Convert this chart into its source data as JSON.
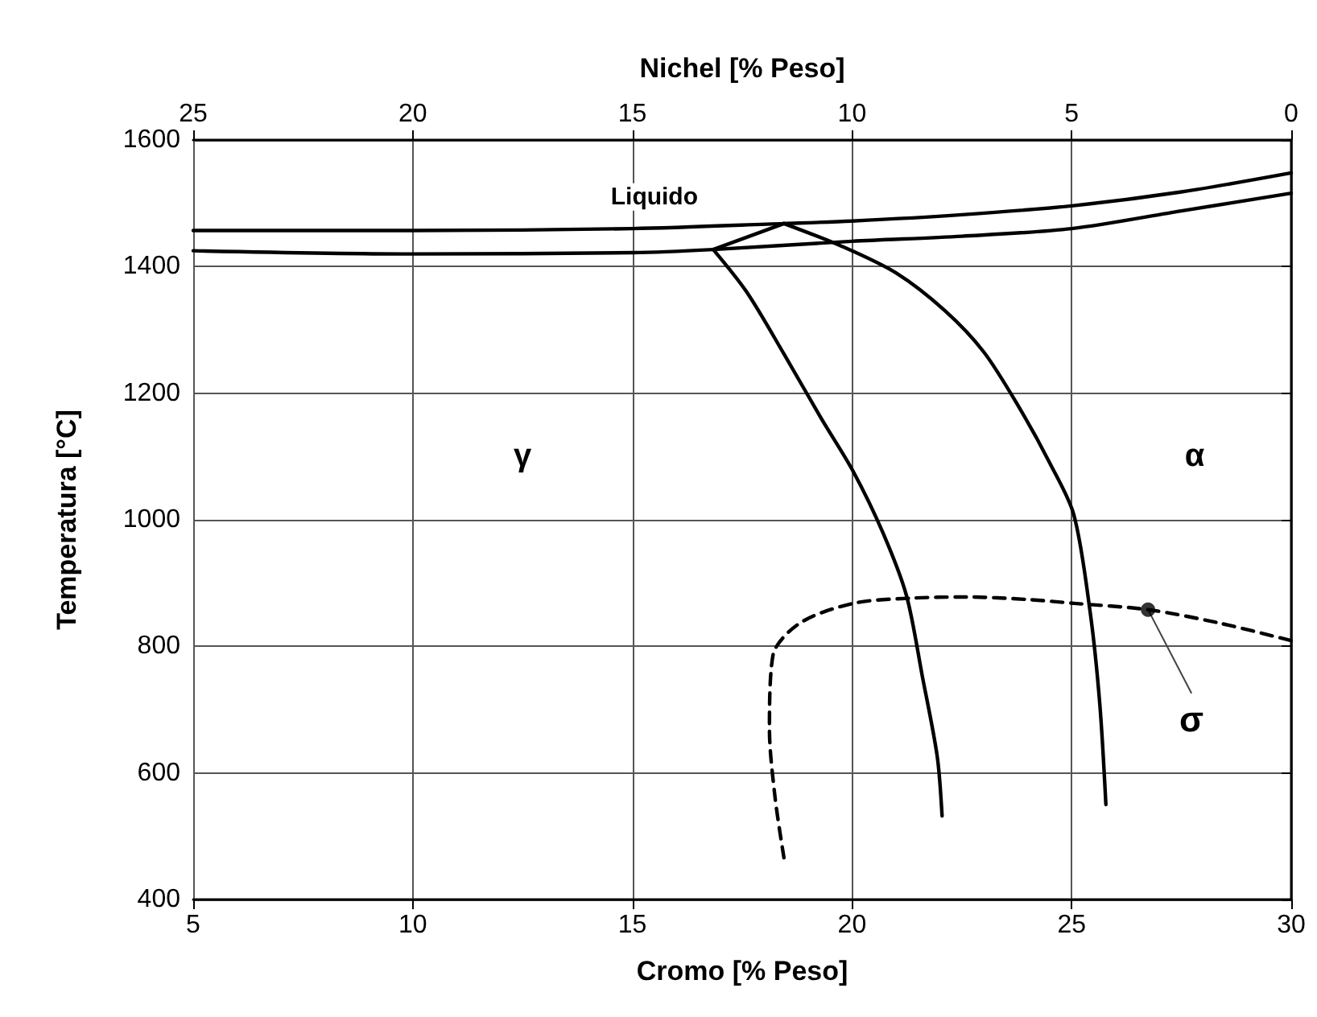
{
  "chart_data": {
    "type": "line",
    "xlabel": "Cromo [% Peso]",
    "x2label": "Nichel [% Peso]",
    "ylabel": "Temperatura [°C]",
    "xlim": [
      5,
      30
    ],
    "xticks": [
      5,
      10,
      15,
      20,
      25,
      30
    ],
    "x2lim": [
      25,
      0
    ],
    "x2ticks": [
      25,
      20,
      15,
      10,
      5,
      0
    ],
    "ylim": [
      400,
      1600
    ],
    "yticks": [
      400,
      600,
      800,
      1000,
      1200,
      1400,
      1600
    ],
    "grid": true,
    "marker": "none",
    "line_style": "solid",
    "annotations": [
      "Liquido",
      "γ",
      "α",
      {
        "text": "σ",
        "x": 26.74,
        "y": 858
      }
    ],
    "series": [
      {
        "color": "#000000",
        "x": [
          5,
          10,
          15,
          18.45,
          20,
          22.5,
          25,
          27.5,
          30
        ],
        "values": [
          1457,
          1457,
          1460,
          1468,
          1472,
          1482,
          1496,
          1518,
          1548
        ]
      },
      {
        "color": "#000000",
        "x": [
          5,
          10,
          15,
          16.84,
          20,
          22.5,
          25,
          27.5,
          30
        ],
        "values": [
          1425,
          1420,
          1422,
          1427,
          1440,
          1448,
          1460,
          1488,
          1516
        ]
      },
      {
        "color": "#000000",
        "x": [
          16.84,
          18.45
        ],
        "values": [
          1427,
          1468
        ]
      },
      {
        "color": "#000000",
        "x": [
          16.84,
          17.6,
          18.45,
          19.3,
          20.03,
          20.7,
          21.24,
          21.6,
          21.94,
          22.05
        ],
        "values": [
          1427,
          1360,
          1262,
          1160,
          1076,
          980,
          880,
          753,
          626,
          532
        ]
      },
      {
        "color": "#000000",
        "x": [
          18.45,
          19.77,
          21,
          22.12,
          23,
          23.8,
          24.5,
          25.05,
          25.42,
          25.64,
          25.78
        ],
        "values": [
          1468,
          1432,
          1390,
          1330,
          1265,
          1178,
          1090,
          1008,
          855,
          710,
          550
        ]
      },
      {
        "color": "#000000",
        "line_style": "dashed",
        "x": [
          18.45,
          18.25,
          18.12,
          18.2,
          18.82,
          20.03,
          21.3,
          22.6,
          24,
          25.05,
          26.74,
          28.35,
          30
        ],
        "values": [
          466,
          560,
          669,
          786,
          837,
          868,
          876,
          878,
          874,
          868,
          858,
          837,
          809
        ]
      },
      {
        "type": "scatter",
        "marker": "circle",
        "color": "#000000",
        "x": [
          26.74
        ],
        "values": [
          858
        ]
      }
    ]
  }
}
